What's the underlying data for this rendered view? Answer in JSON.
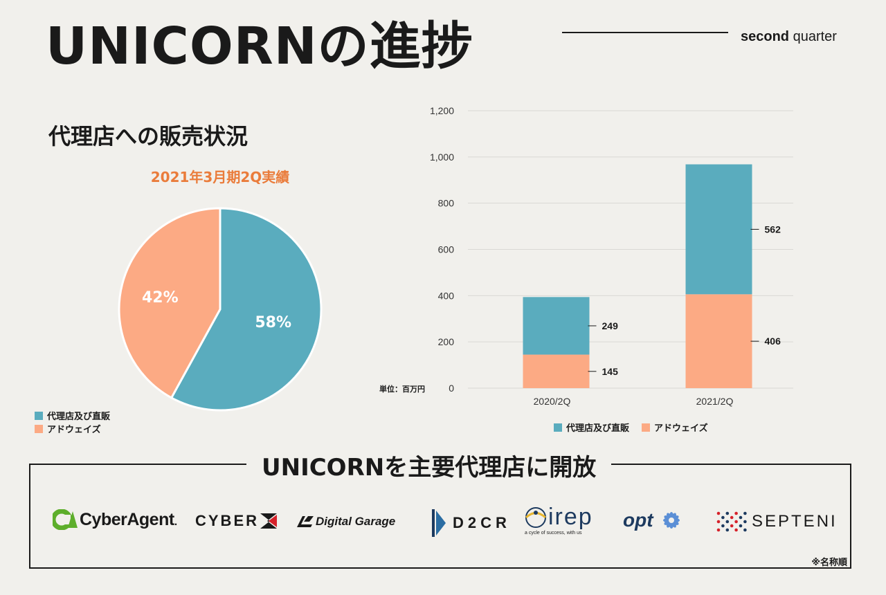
{
  "header": {
    "title": "UNICORNの進捗",
    "quarter_bold": "second",
    "quarter_rest": " quarter"
  },
  "section": {
    "subtitle": "代理店への販売状況"
  },
  "colors": {
    "teal": "#5aacbe",
    "salmon": "#fcaa84",
    "orange_heading": "#ea7c3b",
    "grid": "#d9d8d4"
  },
  "chart_data": [
    {
      "type": "pie",
      "title": "2021年3月期2Q実績",
      "slices": [
        {
          "name": "代理店及び直販",
          "value": 58,
          "label": "58%"
        },
        {
          "name": "アドウェイズ",
          "value": 42,
          "label": "42%"
        }
      ],
      "legend": [
        "代理店及び直販",
        "アドウェイズ"
      ],
      "legend_placement": "bottom-left"
    },
    {
      "type": "bar",
      "stacked": true,
      "categories": [
        "2020/2Q",
        "2021/2Q"
      ],
      "series": [
        {
          "name": "アドウェイズ",
          "values": [
            145,
            406
          ]
        },
        {
          "name": "代理店及び直販",
          "values": [
            249,
            562
          ]
        }
      ],
      "ylim": [
        0,
        1200
      ],
      "yticks": [
        "0",
        "200",
        "400",
        "600",
        "800",
        "1,000",
        "1,200"
      ],
      "ytick_values": [
        0,
        200,
        400,
        600,
        800,
        1000,
        1200
      ],
      "unit_label": "単位：百万円",
      "grid": true,
      "legend": [
        "代理店及び直販",
        "アドウェイズ"
      ],
      "legend_placement": "bottom"
    }
  ],
  "partners": {
    "title": "UNICORNを主要代理店に開放",
    "logos": [
      {
        "icon": "ca-mark",
        "text": "CyberAgent",
        "suffix": "."
      },
      {
        "text": "CYBER",
        "icon": "cyber-z-mark"
      },
      {
        "icon": "dg-mark",
        "text": "Digital Garage"
      },
      {
        "icon": "d2cr-mark",
        "text": "D2CR"
      },
      {
        "icon": "irep-mark",
        "text": "irep",
        "tagline": "a cycle of success, with us"
      },
      {
        "text": "opt",
        "icon": "opt-flower-mark"
      },
      {
        "icon": "septeni-dots-mark",
        "text": "SEPTENI"
      }
    ],
    "note": "※名称順"
  }
}
